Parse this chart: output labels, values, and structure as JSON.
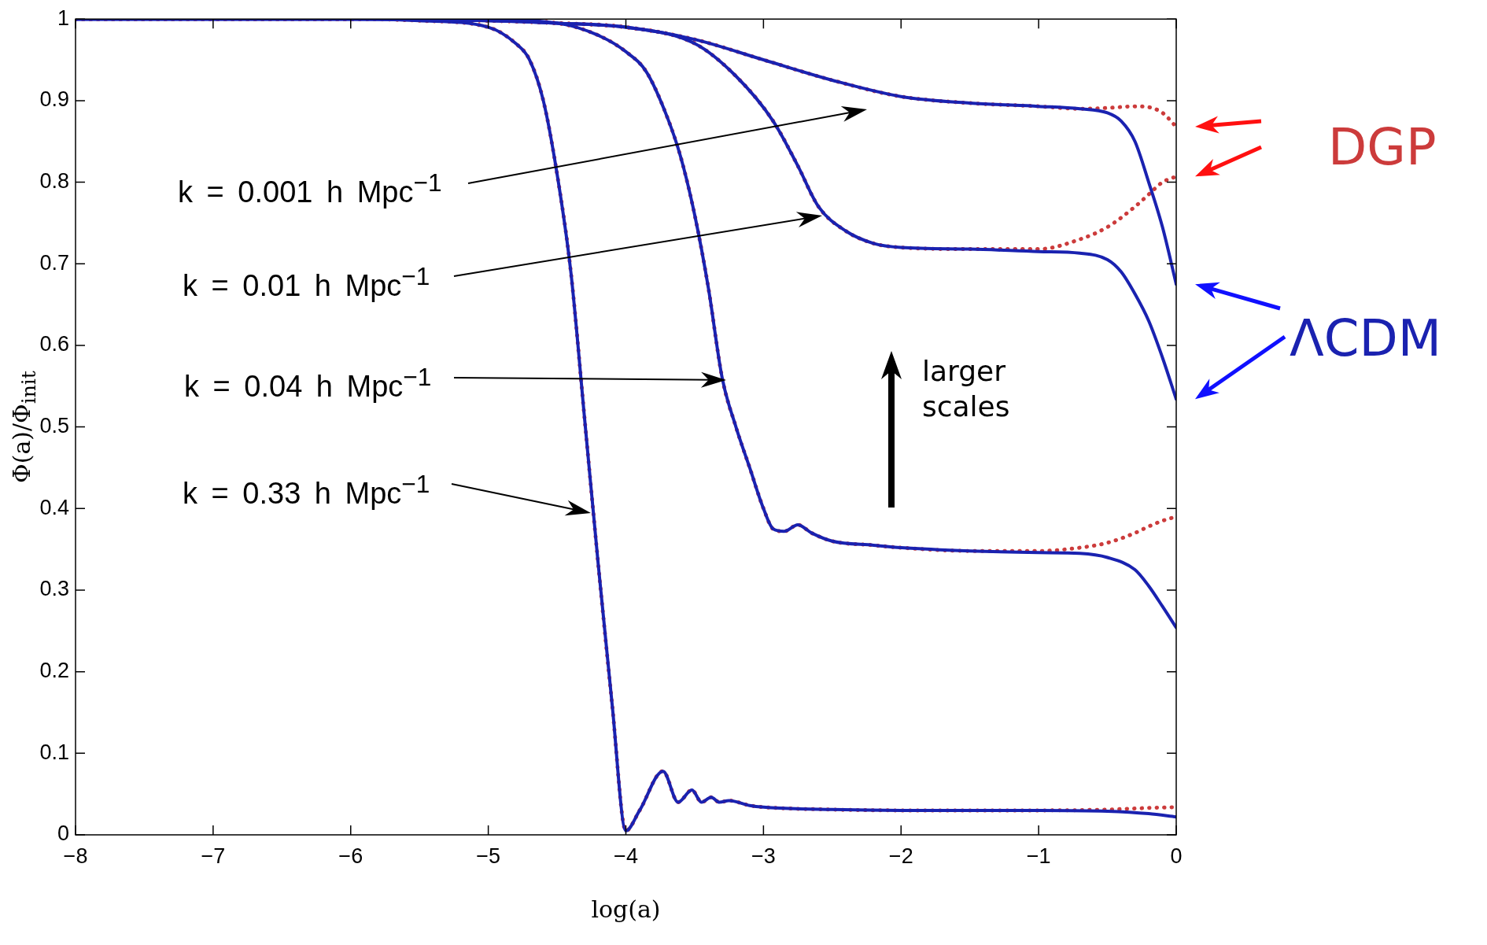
{
  "chart_data": {
    "type": "line",
    "xlabel": "log(a)",
    "ylabel": "Φ(a)/Φ$_{init}$",
    "xlim": [
      -8,
      0
    ],
    "ylim": [
      0,
      1
    ],
    "xticks": [
      -8,
      -7,
      -6,
      -5,
      -4,
      -3,
      -2,
      -1,
      0
    ],
    "yticks": [
      0,
      0.1,
      0.2,
      0.3,
      0.4,
      0.5,
      0.6,
      0.7,
      0.8,
      0.9,
      1
    ],
    "legend": false,
    "marker": "none",
    "series": [
      {
        "color": "#1a22b0",
        "line_style": "solid",
        "x": [
          -8,
          -6,
          -5,
          -4.5,
          -4,
          -3.5,
          -3,
          -2.5,
          -2,
          -1.5,
          -1,
          -0.7,
          -0.5,
          -0.4,
          -0.3,
          -0.2,
          -0.1,
          0
        ],
        "values": [
          1,
          1,
          0.998,
          0.995,
          0.99,
          0.975,
          0.95,
          0.925,
          0.905,
          0.897,
          0.893,
          0.89,
          0.885,
          0.875,
          0.85,
          0.8,
          0.745,
          0.675
        ]
      },
      {
        "color": "#1a22b0",
        "line_style": "solid",
        "x": [
          -8,
          -6,
          -5,
          -4.5,
          -4,
          -3.5,
          -3.2,
          -2.93,
          -2.75,
          -2.6,
          -2.4,
          -2.2,
          -2,
          -1.5,
          -1,
          -0.7,
          -0.5,
          -0.4,
          -0.3,
          -0.2,
          -0.1,
          0
        ],
        "values": [
          1,
          1,
          0.998,
          0.995,
          0.99,
          0.97,
          0.93,
          0.875,
          0.82,
          0.77,
          0.74,
          0.725,
          0.72,
          0.718,
          0.715,
          0.713,
          0.705,
          0.69,
          0.663,
          0.63,
          0.585,
          0.534
        ]
      },
      {
        "color": "#1a22b0",
        "line_style": "solid",
        "x": [
          -8,
          -6,
          -5,
          -4.5,
          -4.2,
          -4,
          -3.85,
          -3.7,
          -3.6,
          -3.5,
          -3.4,
          -3.3,
          -3.2,
          -3.1,
          -3,
          -2.93,
          -2.85,
          -2.75,
          -2.65,
          -2.5,
          -2.2,
          -2,
          -1.5,
          -1,
          -0.7,
          -0.5,
          -0.3,
          -0.2,
          -0.1,
          0
        ],
        "values": [
          1,
          1,
          0.999,
          0.995,
          0.98,
          0.96,
          0.935,
          0.88,
          0.83,
          0.76,
          0.67,
          0.56,
          0.5,
          0.45,
          0.4,
          0.375,
          0.372,
          0.38,
          0.37,
          0.36,
          0.355,
          0.352,
          0.348,
          0.346,
          0.345,
          0.34,
          0.325,
          0.305,
          0.28,
          0.254
        ]
      },
      {
        "color": "#1a22b0",
        "line_style": "solid",
        "x": [
          -8,
          -6,
          -5.5,
          -5,
          -4.8,
          -4.7,
          -4.6,
          -4.5,
          -4.4,
          -4.3,
          -4.2,
          -4.1,
          -4,
          -3.9,
          -3.73,
          -3.62,
          -3.52,
          -3.45,
          -3.38,
          -3.32,
          -3.25,
          -3.1,
          -3,
          -2.5,
          -2,
          -1,
          -0.5,
          -0.2,
          0
        ],
        "values": [
          1,
          1,
          0.998,
          0.99,
          0.97,
          0.95,
          0.9,
          0.81,
          0.69,
          0.51,
          0.33,
          0.16,
          0.005,
          0.03,
          0.078,
          0.04,
          0.055,
          0.04,
          0.046,
          0.04,
          0.042,
          0.036,
          0.034,
          0.031,
          0.03,
          0.03,
          0.029,
          0.026,
          0.022
        ]
      },
      {
        "color": "#cc3b3b",
        "line_style": "dotted",
        "x": [
          -8,
          -6,
          -5,
          -4.5,
          -4,
          -3.5,
          -3,
          -2.5,
          -2,
          -1.5,
          -1,
          -0.7,
          -0.5,
          -0.3,
          -0.2,
          -0.1,
          0
        ],
        "values": [
          1,
          1,
          0.998,
          0.995,
          0.99,
          0.975,
          0.95,
          0.925,
          0.905,
          0.897,
          0.893,
          0.89,
          0.891,
          0.893,
          0.892,
          0.885,
          0.868
        ]
      },
      {
        "color": "#cc3b3b",
        "line_style": "dotted",
        "x": [
          -8,
          -6,
          -5,
          -4.5,
          -4,
          -3.5,
          -3.2,
          -2.93,
          -2.75,
          -2.6,
          -2.4,
          -2.2,
          -2,
          -1.5,
          -1,
          -0.7,
          -0.5,
          -0.3,
          -0.2,
          -0.1,
          0
        ],
        "values": [
          1,
          1,
          0.998,
          0.995,
          0.99,
          0.97,
          0.93,
          0.875,
          0.82,
          0.77,
          0.74,
          0.725,
          0.72,
          0.718,
          0.718,
          0.73,
          0.745,
          0.77,
          0.785,
          0.8,
          0.807
        ]
      },
      {
        "color": "#cc3b3b",
        "line_style": "dotted",
        "x": [
          -8,
          -6,
          -5,
          -4.5,
          -4.2,
          -4,
          -3.85,
          -3.7,
          -3.6,
          -3.5,
          -3.4,
          -3.3,
          -3.2,
          -3.1,
          -3,
          -2.93,
          -2.85,
          -2.75,
          -2.65,
          -2.5,
          -2.2,
          -2,
          -1.5,
          -1,
          -0.7,
          -0.5,
          -0.3,
          -0.2,
          -0.1,
          0
        ],
        "values": [
          1,
          1,
          0.999,
          0.995,
          0.98,
          0.96,
          0.935,
          0.88,
          0.83,
          0.76,
          0.67,
          0.56,
          0.5,
          0.45,
          0.4,
          0.375,
          0.372,
          0.38,
          0.37,
          0.36,
          0.355,
          0.352,
          0.348,
          0.348,
          0.352,
          0.358,
          0.37,
          0.378,
          0.385,
          0.39
        ]
      },
      {
        "color": "#cc3b3b",
        "line_style": "dotted",
        "x": [
          -8,
          -6,
          -5.5,
          -5,
          -4.8,
          -4.7,
          -4.6,
          -4.5,
          -4.4,
          -4.3,
          -4.2,
          -4.1,
          -4,
          -3.9,
          -3.73,
          -3.62,
          -3.52,
          -3.45,
          -3.38,
          -3.32,
          -3.25,
          -3.1,
          -3,
          -2.5,
          -2,
          -1,
          -0.5,
          -0.2,
          0
        ],
        "values": [
          1,
          1,
          0.998,
          0.99,
          0.97,
          0.95,
          0.9,
          0.81,
          0.69,
          0.51,
          0.33,
          0.16,
          0.005,
          0.03,
          0.078,
          0.04,
          0.055,
          0.04,
          0.046,
          0.04,
          0.042,
          0.036,
          0.034,
          0.031,
          0.03,
          0.03,
          0.031,
          0.033,
          0.034
        ]
      }
    ],
    "annotations": [
      "k = 0.001 h Mpc$^{−1}$",
      "k = 0.01 h Mpc$^{−1}$",
      "k = 0.04 h Mpc$^{−1}$",
      "k = 0.33 h Mpc$^{−1}$",
      "larger scales",
      "DGP",
      "ΛCDM"
    ]
  }
}
